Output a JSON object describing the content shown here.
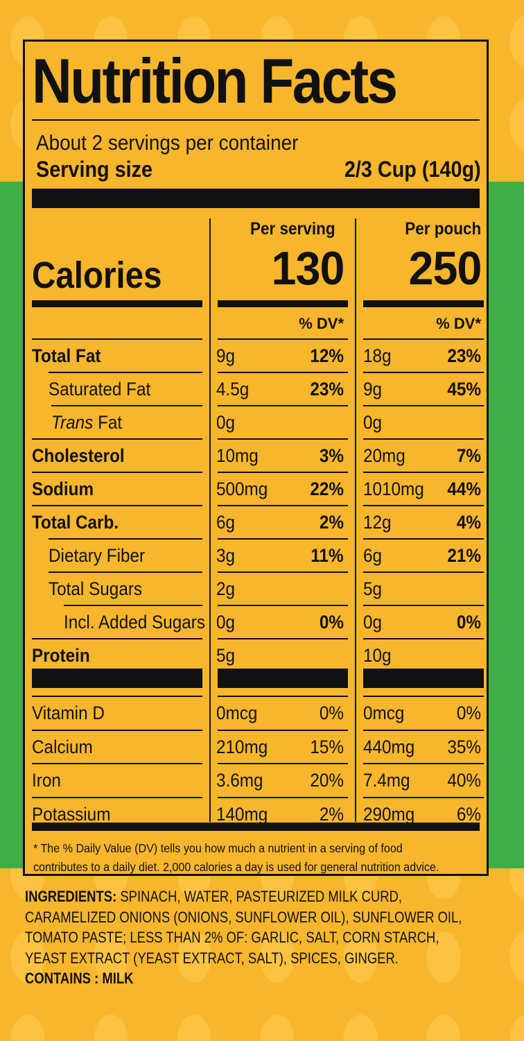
{
  "label": {
    "title": "Nutrition Facts",
    "servings_per_container": "About 2 servings per container",
    "serving_size_label": "Serving size",
    "serving_size_value": "2/3 Cup (140g)",
    "col1_header": "Per serving",
    "col2_header": "Per pouch",
    "calories_label": "Calories",
    "calories_serving": "130",
    "calories_pouch": "250",
    "dv_header": "% DV*",
    "nutrients": [
      {
        "name": "Total Fat",
        "s_amt": "9g",
        "s_dv": "12%",
        "p_amt": "18g",
        "p_dv": "23%"
      },
      {
        "name": "Saturated Fat",
        "s_amt": "4.5g",
        "s_dv": "23%",
        "p_amt": "9g",
        "p_dv": "45%"
      },
      {
        "name_italic": "Trans",
        "name": " Fat",
        "s_amt": "0g",
        "s_dv": "",
        "p_amt": "0g",
        "p_dv": ""
      },
      {
        "name": "Cholesterol",
        "s_amt": "10mg",
        "s_dv": "3%",
        "p_amt": "20mg",
        "p_dv": "7%"
      },
      {
        "name": "Sodium",
        "s_amt": "500mg",
        "s_dv": "22%",
        "p_amt": "1010mg",
        "p_dv": "44%"
      },
      {
        "name": "Total Carb.",
        "s_amt": "6g",
        "s_dv": "2%",
        "p_amt": "12g",
        "p_dv": "4%"
      },
      {
        "name": "Dietary Fiber",
        "s_amt": "3g",
        "s_dv": "11%",
        "p_amt": "6g",
        "p_dv": "21%"
      },
      {
        "name": "Total Sugars",
        "s_amt": "2g",
        "s_dv": "",
        "p_amt": "5g",
        "p_dv": ""
      },
      {
        "name": "Incl. Added Sugars",
        "s_amt": "0g",
        "s_dv": "0%",
        "p_amt": "0g",
        "p_dv": "0%"
      },
      {
        "name": "Protein",
        "s_amt": "5g",
        "s_dv": "",
        "p_amt": "10g",
        "p_dv": ""
      }
    ],
    "vitamins": [
      {
        "name": "Vitamin D",
        "s_amt": "0mcg",
        "s_dv": "0%",
        "p_amt": "0mcg",
        "p_dv": "0%"
      },
      {
        "name": "Calcium",
        "s_amt": "210mg",
        "s_dv": "15%",
        "p_amt": "440mg",
        "p_dv": "35%"
      },
      {
        "name": "Iron",
        "s_amt": "3.6mg",
        "s_dv": "20%",
        "p_amt": "7.4mg",
        "p_dv": "40%"
      },
      {
        "name": "Potassium",
        "s_amt": "140mg",
        "s_dv": "2%",
        "p_amt": "290mg",
        "p_dv": "6%"
      }
    ],
    "footnote": "* The % Daily Value (DV) tells you how much a nutrient in a serving of food contributes to a daily diet. 2,000 calories a day is used for general nutrition advice."
  },
  "ingredients": {
    "label": "INGREDIENTS:",
    "text": "SPINACH, WATER, PASTEURIZED MILK CURD, CARAMELIZED ONIONS (ONIONS, SUNFLOWER OIL), SUNFLOWER OIL, TOMATO PASTE; LESS THAN 2% OF: GARLIC,  SALT, CORN STARCH, YEAST EXTRACT (YEAST EXTRACT, SALT), SPICES, GINGER.",
    "contains": "CONTAINS : MILK"
  },
  "colors": {
    "background": "#f7b62c",
    "band": "#3fae49",
    "ink": "#111111"
  }
}
